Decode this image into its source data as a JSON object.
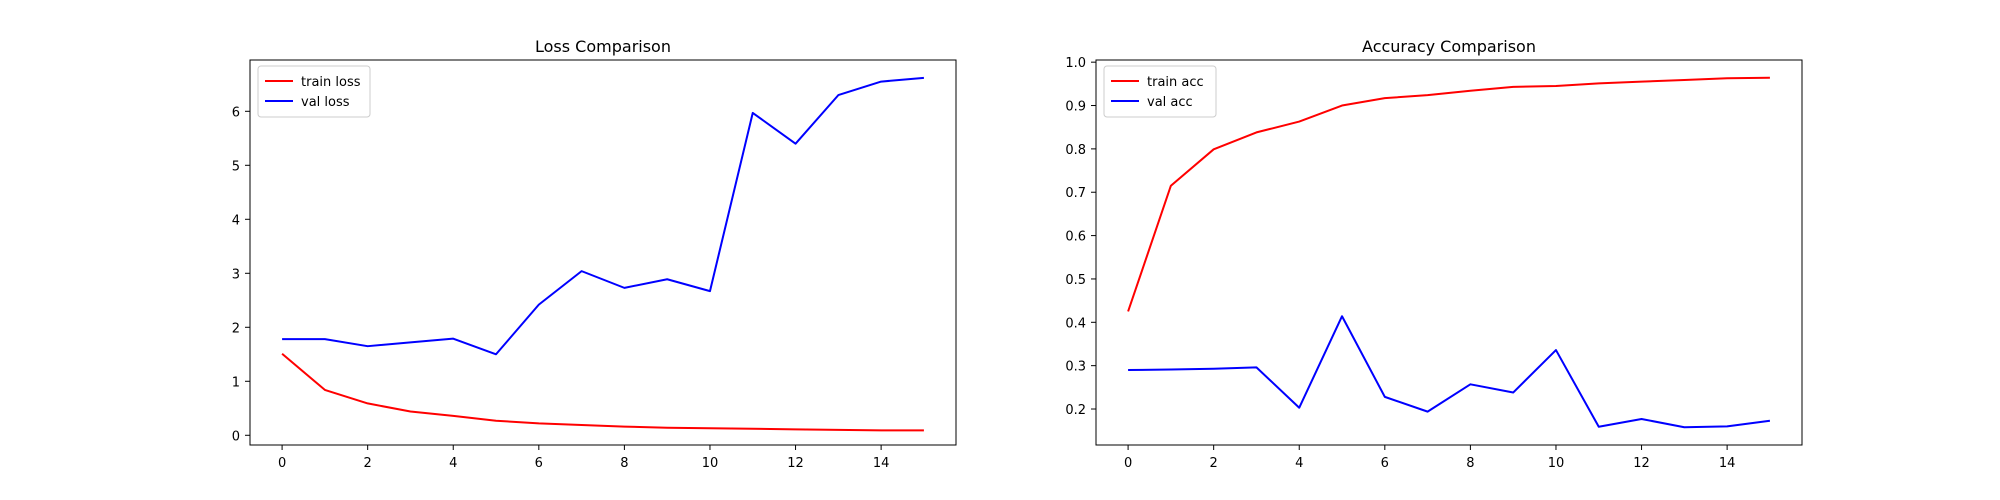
{
  "chart_data": [
    {
      "type": "line",
      "title": "Loss Comparison",
      "xlabel": "",
      "ylabel": "",
      "xlim": [
        -0.75,
        15.75
      ],
      "ylim": [
        -0.18,
        6.95
      ],
      "xticks": [
        0,
        2,
        4,
        6,
        8,
        10,
        12,
        14
      ],
      "yticks": [
        0,
        1,
        2,
        3,
        4,
        5,
        6
      ],
      "grid": false,
      "legend": "top-left",
      "x": [
        0,
        1,
        2,
        3,
        4,
        5,
        6,
        7,
        8,
        9,
        10,
        11,
        12,
        13,
        14,
        15
      ],
      "series": [
        {
          "name": "train loss",
          "color": "#ff0000",
          "values": [
            1.51,
            0.84,
            0.59,
            0.44,
            0.36,
            0.27,
            0.22,
            0.19,
            0.16,
            0.14,
            0.13,
            0.12,
            0.11,
            0.1,
            0.09,
            0.09
          ]
        },
        {
          "name": "val loss",
          "color": "#0000ff",
          "values": [
            1.78,
            1.78,
            1.65,
            1.72,
            1.79,
            1.5,
            2.42,
            3.04,
            2.73,
            2.89,
            2.67,
            5.97,
            5.4,
            6.3,
            6.55,
            6.62
          ]
        }
      ]
    },
    {
      "type": "line",
      "title": "Accuracy Comparison",
      "xlabel": "",
      "ylabel": "",
      "xlim": [
        -0.75,
        15.75
      ],
      "ylim": [
        0.117,
        1.005
      ],
      "xticks": [
        0,
        2,
        4,
        6,
        8,
        10,
        12,
        14
      ],
      "yticks": [
        0.2,
        0.3,
        0.4,
        0.5,
        0.6,
        0.7,
        0.8,
        0.9,
        1.0
      ],
      "ytick_labels": [
        "0.2",
        "0.3",
        "0.4",
        "0.5",
        "0.6",
        "0.7",
        "0.8",
        "0.9",
        "1.0"
      ],
      "grid": false,
      "legend": "top-left",
      "x": [
        0,
        1,
        2,
        3,
        4,
        5,
        6,
        7,
        8,
        9,
        10,
        11,
        12,
        13,
        14,
        15
      ],
      "series": [
        {
          "name": "train acc",
          "color": "#ff0000",
          "values": [
            0.425,
            0.715,
            0.799,
            0.838,
            0.863,
            0.9,
            0.917,
            0.924,
            0.934,
            0.943,
            0.945,
            0.951,
            0.955,
            0.959,
            0.963,
            0.964
          ]
        },
        {
          "name": "val acc",
          "color": "#0000ff",
          "values": [
            0.29,
            0.291,
            0.293,
            0.296,
            0.203,
            0.414,
            0.228,
            0.194,
            0.257,
            0.238,
            0.336,
            0.159,
            0.177,
            0.158,
            0.16,
            0.173
          ]
        }
      ]
    }
  ]
}
